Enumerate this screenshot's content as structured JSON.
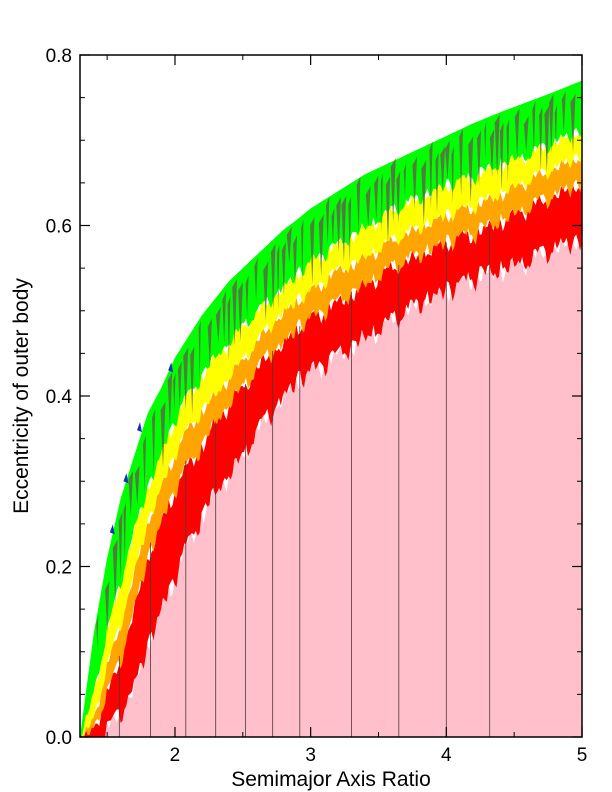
{
  "chart_data": {
    "type": "area",
    "xlabel": "Semimajor Axis Ratio",
    "ylabel": "Eccentricity of outer body",
    "xlim": [
      1.3,
      5.0
    ],
    "ylim": [
      0.0,
      0.8
    ],
    "x_ticks": [
      {
        "value": 2,
        "label": "2"
      },
      {
        "value": 3,
        "label": "3"
      },
      {
        "value": 4,
        "label": "4"
      },
      {
        "value": 5,
        "label": "5"
      }
    ],
    "y_ticks": [
      {
        "value": 0.0,
        "label": "0.0"
      },
      {
        "value": 0.2,
        "label": "0.2"
      },
      {
        "value": 0.4,
        "label": "0.4"
      },
      {
        "value": 0.6,
        "label": "0.6"
      },
      {
        "value": 0.8,
        "label": "0.8"
      }
    ],
    "grid": false,
    "colors": {
      "stable": "#ffc0cb",
      "red": "#ff0000",
      "orange": "#ffa500",
      "yellow": "#ffff00",
      "green": "#00ff00",
      "dark": "#5a6b45",
      "blue": "#1030c0"
    },
    "boundaries": {
      "x": [
        1.3,
        1.4,
        1.5,
        1.6,
        1.7,
        1.8,
        1.9,
        2.0,
        2.1,
        2.2,
        2.3,
        2.4,
        2.5,
        2.6,
        2.7,
        2.8,
        2.9,
        3.0,
        3.2,
        3.4,
        3.6,
        3.8,
        4.0,
        4.2,
        4.4,
        4.6,
        4.8,
        5.0
      ],
      "outer_edge": [
        0.0,
        0.12,
        0.21,
        0.28,
        0.33,
        0.38,
        0.41,
        0.445,
        0.47,
        0.495,
        0.515,
        0.535,
        0.55,
        0.565,
        0.58,
        0.595,
        0.607,
        0.62,
        0.64,
        0.66,
        0.675,
        0.69,
        0.705,
        0.72,
        0.733,
        0.745,
        0.757,
        0.77
      ],
      "green_lower": [
        0.0,
        0.06,
        0.13,
        0.19,
        0.25,
        0.3,
        0.34,
        0.38,
        0.41,
        0.43,
        0.455,
        0.47,
        0.49,
        0.505,
        0.52,
        0.535,
        0.55,
        0.565,
        0.585,
        0.605,
        0.625,
        0.64,
        0.655,
        0.665,
        0.68,
        0.69,
        0.705,
        0.72
      ],
      "yellow_lower": [
        0.0,
        0.03,
        0.09,
        0.14,
        0.2,
        0.26,
        0.3,
        0.34,
        0.37,
        0.39,
        0.41,
        0.43,
        0.45,
        0.47,
        0.49,
        0.505,
        0.52,
        0.53,
        0.555,
        0.57,
        0.59,
        0.605,
        0.62,
        0.63,
        0.645,
        0.66,
        0.675,
        0.69
      ],
      "orange_lower": [
        0.0,
        0.02,
        0.06,
        0.1,
        0.16,
        0.22,
        0.26,
        0.3,
        0.33,
        0.35,
        0.38,
        0.4,
        0.42,
        0.44,
        0.46,
        0.47,
        0.49,
        0.5,
        0.52,
        0.54,
        0.56,
        0.575,
        0.59,
        0.6,
        0.615,
        0.63,
        0.645,
        0.66
      ],
      "red_lower": [
        0.0,
        0.0,
        0.02,
        0.04,
        0.07,
        0.12,
        0.16,
        0.2,
        0.24,
        0.27,
        0.3,
        0.32,
        0.34,
        0.37,
        0.39,
        0.41,
        0.43,
        0.44,
        0.46,
        0.48,
        0.5,
        0.52,
        0.535,
        0.55,
        0.56,
        0.57,
        0.585,
        0.595
      ]
    },
    "resonance_lines_x": [
      1.59,
      1.82,
      2.08,
      2.3,
      2.52,
      2.72,
      2.92,
      3.3,
      3.65,
      4.0,
      4.32
    ]
  }
}
